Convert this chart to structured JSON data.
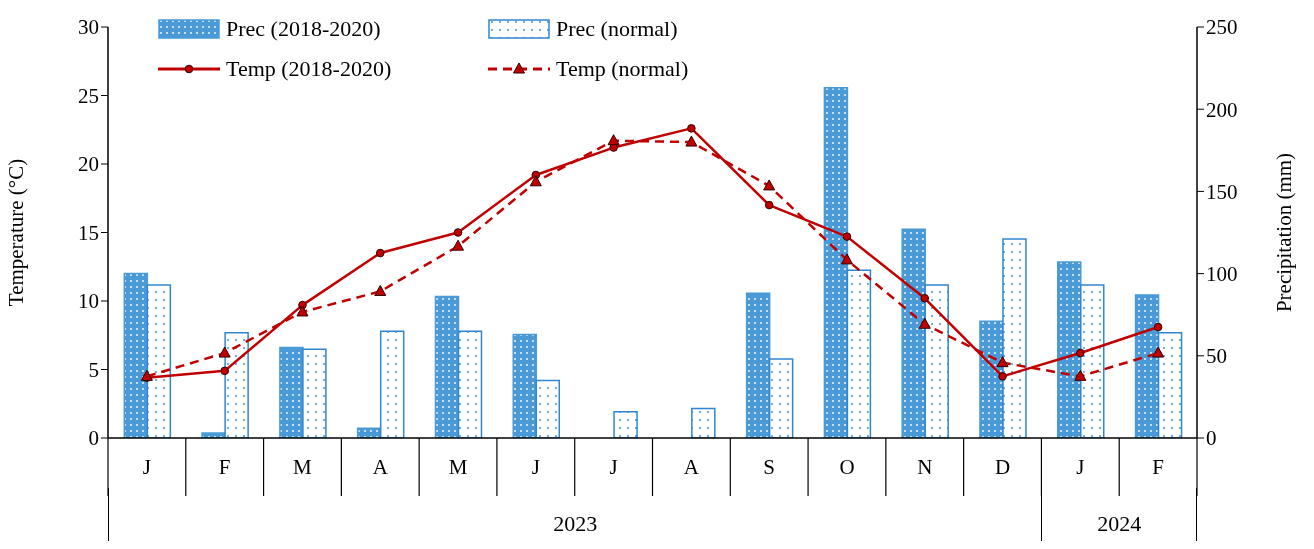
{
  "chart_data": {
    "type": "bar",
    "categories": [
      "J",
      "F",
      "M",
      "A",
      "M",
      "J",
      "J",
      "A",
      "S",
      "O",
      "N",
      "D",
      "J",
      "F"
    ],
    "series": [
      {
        "name": "Prec (2018-2020)",
        "axis": "y2",
        "color": "#4a9ad8",
        "values": [
          100,
          3,
          55,
          6,
          86,
          63,
          0,
          0,
          88,
          213,
          127,
          71,
          107,
          87
        ]
      },
      {
        "name": "Prec (normal)",
        "axis": "y2",
        "color": "#2f86d0",
        "values": [
          93,
          64,
          54,
          65,
          65,
          35,
          16,
          18,
          48,
          102,
          93,
          121,
          93,
          64
        ]
      },
      {
        "name": "Temp (2018-2020)",
        "type": "line",
        "axis": "y",
        "color": "#c00000",
        "marker": "circle",
        "line_style": "solid",
        "values": [
          4.4,
          4.9,
          9.7,
          13.5,
          15.0,
          19.2,
          21.2,
          22.6,
          17.0,
          14.7,
          10.2,
          4.5,
          6.2,
          8.1
        ]
      },
      {
        "name": "Temp (normal)",
        "type": "line",
        "axis": "y",
        "color": "#c00000",
        "marker": "triangle",
        "line_style": "dashed",
        "values": [
          4.5,
          6.2,
          9.2,
          10.7,
          14.0,
          18.7,
          21.7,
          21.6,
          18.4,
          13.0,
          8.3,
          5.5,
          4.5,
          6.2
        ]
      }
    ],
    "ylabel": "Temperature (°C)",
    "y2label": "Precipitation (mm)",
    "ylim": [
      0,
      30
    ],
    "yticks": [
      0,
      5,
      10,
      15,
      20,
      25,
      30
    ],
    "y2lim": [
      0,
      250
    ],
    "y2ticks": [
      0,
      50,
      100,
      150,
      200,
      250
    ],
    "annotations": [
      "2023",
      "2024"
    ],
    "legend": "top"
  }
}
